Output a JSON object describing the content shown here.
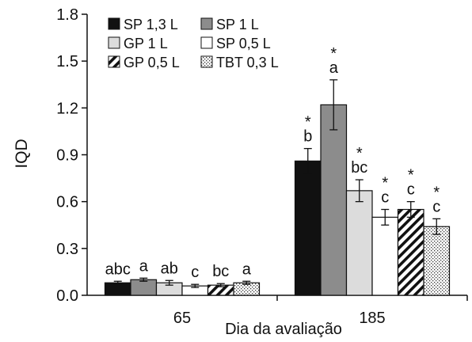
{
  "chart_data": {
    "type": "bar",
    "title": "",
    "xlabel": "Dia da avaliação",
    "ylabel": "IQD",
    "ylim": [
      0,
      1.8
    ],
    "yticks": [
      "0.0",
      "0.3",
      "0.6",
      "0.9",
      "1.2",
      "1.5",
      "1.8"
    ],
    "grid": false,
    "legend_position": "top-left",
    "categories": [
      "65",
      "185"
    ],
    "series": [
      {
        "name": "SP 1,3 L",
        "pattern": "solid-black",
        "values": [
          0.08,
          0.86
        ],
        "errors": [
          0.01,
          0.08
        ],
        "letters": [
          "abc",
          "b"
        ],
        "significance": [
          "",
          "*"
        ]
      },
      {
        "name": "SP 1 L",
        "pattern": "solid-gray",
        "values": [
          0.1,
          1.22
        ],
        "errors": [
          0.01,
          0.16
        ],
        "letters": [
          "a",
          "a"
        ],
        "significance": [
          "",
          "*"
        ]
      },
      {
        "name": "GP 1 L",
        "pattern": "light-gray",
        "values": [
          0.08,
          0.67
        ],
        "errors": [
          0.015,
          0.07
        ],
        "letters": [
          "ab",
          "bc"
        ],
        "significance": [
          "",
          "*"
        ]
      },
      {
        "name": "SP 0,5 L",
        "pattern": "white",
        "values": [
          0.06,
          0.5
        ],
        "errors": [
          0.01,
          0.05
        ],
        "letters": [
          "c",
          "c"
        ],
        "significance": [
          "",
          "*"
        ]
      },
      {
        "name": "GP 0,5 L",
        "pattern": "diagonal-hatch",
        "values": [
          0.065,
          0.55
        ],
        "errors": [
          0.01,
          0.05
        ],
        "letters": [
          "bc",
          "c"
        ],
        "significance": [
          "",
          "*"
        ]
      },
      {
        "name": "TBT 0,3 L",
        "pattern": "dotted",
        "values": [
          0.08,
          0.44
        ],
        "errors": [
          0.01,
          0.05
        ],
        "letters": [
          "a",
          "c"
        ],
        "significance": [
          "",
          "*"
        ]
      }
    ],
    "colors": {
      "solid-black": "#111111",
      "solid-gray": "#8c8c8c",
      "light-gray": "#dcdcdc",
      "white": "#ffffff",
      "outline": "#111111"
    }
  }
}
